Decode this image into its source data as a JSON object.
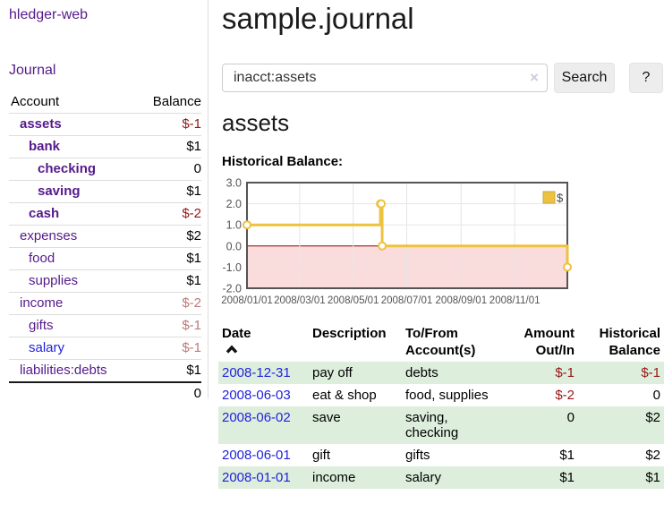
{
  "sidebar": {
    "app_title": "hledger-web",
    "journal_link": "Journal",
    "table": {
      "account_header": "Account",
      "balance_header": "Balance",
      "accounts": [
        {
          "name": "assets",
          "balance": "$-1"
        },
        {
          "name": "bank",
          "balance": "$1"
        },
        {
          "name": "checking",
          "balance": "0"
        },
        {
          "name": "saving",
          "balance": "$1"
        },
        {
          "name": "cash",
          "balance": "$-2"
        },
        {
          "name": "expenses",
          "balance": "$2"
        },
        {
          "name": "food",
          "balance": "$1"
        },
        {
          "name": "supplies",
          "balance": "$1"
        },
        {
          "name": "income",
          "balance": "$-2"
        },
        {
          "name": "gifts",
          "balance": "$-1"
        },
        {
          "name": "salary",
          "balance": "$-1"
        },
        {
          "name": "liabilities:debts",
          "balance": "$1"
        }
      ],
      "total": "0"
    }
  },
  "header": {
    "title": "sample.journal"
  },
  "search": {
    "value": "inacct:assets",
    "clear_icon": "×",
    "button_label": "Search",
    "help_label": "?"
  },
  "account_page": {
    "title": "assets",
    "chart_label": "Historical Balance:"
  },
  "chart_data": {
    "type": "line",
    "title": "Historical Balance",
    "xlabel": "",
    "ylabel": "",
    "legend_label": "$",
    "legend_position": "top-right",
    "grid": true,
    "line_color": "#EDC240",
    "x_range": [
      "2008-01-01",
      "2008-12-31"
    ],
    "ylim": [
      -2,
      3
    ],
    "y_ticks": [
      {
        "v": 3,
        "label": "3.0"
      },
      {
        "v": 2,
        "label": "2.0"
      },
      {
        "v": 1,
        "label": "1.0"
      },
      {
        "v": 0,
        "label": "0.0"
      },
      {
        "v": -1,
        "label": "-1.0"
      },
      {
        "v": -2,
        "label": "-2.0"
      }
    ],
    "x_ticks": [
      {
        "date": "2008-01-01",
        "label": "2008/01/01"
      },
      {
        "date": "2008-03-01",
        "label": "2008/03/01"
      },
      {
        "date": "2008-05-01",
        "label": "2008/05/01"
      },
      {
        "date": "2008-07-01",
        "label": "2008/07/01"
      },
      {
        "date": "2008-09-01",
        "label": "2008/09/01"
      },
      {
        "date": "2008-11-01",
        "label": "2008/11/01"
      }
    ],
    "series": [
      {
        "name": "$",
        "step": true,
        "points": [
          [
            "2008-01-01",
            1
          ],
          [
            "2008-06-01",
            2
          ],
          [
            "2008-06-02",
            2
          ],
          [
            "2008-06-03",
            0
          ],
          [
            "2008-12-31",
            -1
          ]
        ]
      }
    ],
    "markings": {
      "below_zero_fill": "#fbdcdc",
      "zero_line_color": "#8b0000"
    }
  },
  "register_table": {
    "headers": {
      "date": "Date",
      "description": "Description",
      "account_line1": "To/From",
      "account_line2": "Account(s)",
      "amount_line1": "Amount",
      "amount_line2": "Out/In",
      "balance_line1": "Historical",
      "balance_line2": "Balance"
    },
    "rows": [
      {
        "date": "2008-12-31",
        "description": "pay off",
        "accounts": "debts",
        "amount": "$-1",
        "balance": "$-1"
      },
      {
        "date": "2008-06-03",
        "description": "eat & shop",
        "accounts": "food, supplies",
        "amount": "$-2",
        "balance": "0"
      },
      {
        "date": "2008-06-02",
        "description": "save",
        "accounts": "saving, checking",
        "amount": "0",
        "balance": "$2"
      },
      {
        "date": "2008-06-01",
        "description": "gift",
        "accounts": "gifts",
        "amount": "$1",
        "balance": "$2"
      },
      {
        "date": "2008-01-01",
        "description": "income",
        "accounts": "salary",
        "amount": "$1",
        "balance": "$1"
      }
    ]
  }
}
